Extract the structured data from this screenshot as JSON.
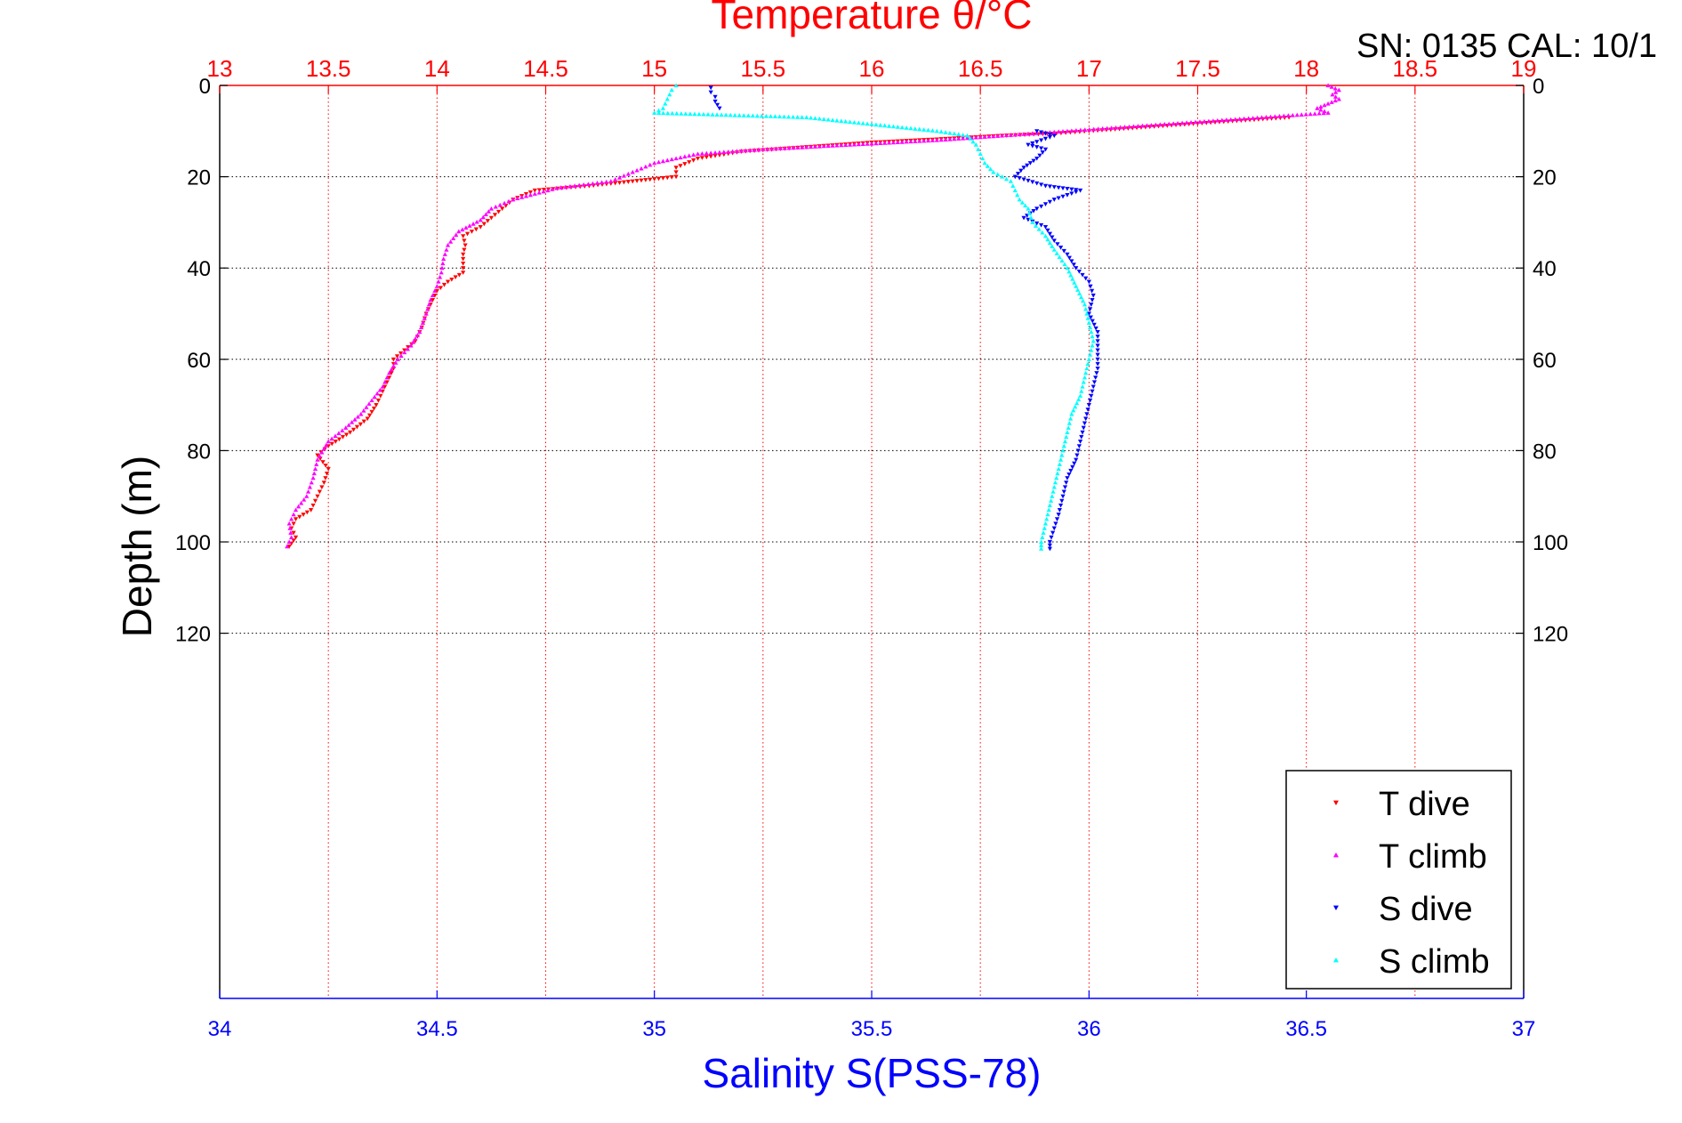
{
  "chart_data": {
    "type": "scatter",
    "top_axis": {
      "label": "Temperature θ/°C",
      "range": [
        13,
        19
      ],
      "ticks": [
        13,
        13.5,
        14,
        14.5,
        15,
        15.5,
        16,
        16.5,
        17,
        17.5,
        18,
        18.5,
        19
      ],
      "tick_labels": [
        "13",
        "13.5",
        "14",
        "14.5",
        "15",
        "15.5",
        "16",
        "16.5",
        "17",
        "17.5",
        "18",
        "18.5",
        "19"
      ],
      "color": "#ff0000"
    },
    "bottom_axis": {
      "label": "Salinity S(PSS-78)",
      "range": [
        34,
        37
      ],
      "ticks": [
        34,
        34.5,
        35,
        35.5,
        36,
        36.5,
        37
      ],
      "tick_labels": [
        "34",
        "34.5",
        "35",
        "35.5",
        "36",
        "36.5",
        "37"
      ],
      "color": "#0000ff"
    },
    "y_axis": {
      "label": "Depth (m)",
      "range": [
        0,
        200
      ],
      "reversed": true,
      "ticks": [
        0,
        20,
        40,
        60,
        80,
        100,
        120
      ],
      "tick_labels": [
        "0",
        "20",
        "40",
        "60",
        "80",
        "100",
        "120"
      ]
    },
    "annotation": "SN: 0135  CAL: 10/1",
    "grid": true,
    "legend_position": "bottom-right",
    "series": [
      {
        "name": "T dive",
        "color": "#ff0000",
        "marker": "triangle-down",
        "axis": "top",
        "points": [
          [
            17.92,
            7
          ],
          [
            17.6,
            8
          ],
          [
            17.3,
            9
          ],
          [
            17.0,
            10
          ],
          [
            16.85,
            10.5
          ],
          [
            16.6,
            11
          ],
          [
            16.3,
            11.8
          ],
          [
            16.0,
            12.5
          ],
          [
            15.7,
            13.5
          ],
          [
            15.4,
            14.5
          ],
          [
            15.2,
            16
          ],
          [
            15.1,
            18
          ],
          [
            15.1,
            20
          ],
          [
            14.9,
            21
          ],
          [
            14.7,
            22
          ],
          [
            14.45,
            23
          ],
          [
            14.35,
            25
          ],
          [
            14.3,
            27
          ],
          [
            14.25,
            29
          ],
          [
            14.2,
            31
          ],
          [
            14.12,
            33
          ],
          [
            14.13,
            35
          ],
          [
            14.12,
            37
          ],
          [
            14.12,
            39
          ],
          [
            14.12,
            41
          ],
          [
            14.05,
            43
          ],
          [
            14.0,
            45
          ],
          [
            13.98,
            47
          ],
          [
            13.95,
            50
          ],
          [
            13.93,
            53
          ],
          [
            13.9,
            56
          ],
          [
            13.85,
            58
          ],
          [
            13.8,
            60
          ],
          [
            13.8,
            62
          ],
          [
            13.78,
            64
          ],
          [
            13.75,
            67
          ],
          [
            13.72,
            70
          ],
          [
            13.68,
            73
          ],
          [
            13.6,
            76
          ],
          [
            13.5,
            79
          ],
          [
            13.45,
            81
          ],
          [
            13.5,
            84
          ],
          [
            13.48,
            87
          ],
          [
            13.45,
            90
          ],
          [
            13.42,
            93
          ],
          [
            13.35,
            95
          ],
          [
            13.33,
            97
          ],
          [
            13.35,
            99
          ],
          [
            13.32,
            101
          ]
        ]
      },
      {
        "name": "T climb",
        "color": "#ff00ff",
        "marker": "triangle-up",
        "axis": "top",
        "points": [
          [
            18.1,
            0
          ],
          [
            18.15,
            1
          ],
          [
            18.12,
            2
          ],
          [
            18.15,
            3
          ],
          [
            18.1,
            4
          ],
          [
            18.05,
            5
          ],
          [
            18.1,
            6
          ],
          [
            16.9,
            10
          ],
          [
            16.6,
            11
          ],
          [
            16.3,
            12
          ],
          [
            15.9,
            13
          ],
          [
            15.5,
            14
          ],
          [
            15.2,
            15
          ],
          [
            15.0,
            17
          ],
          [
            14.9,
            19
          ],
          [
            14.8,
            21
          ],
          [
            14.55,
            22.5
          ],
          [
            14.35,
            25
          ],
          [
            14.25,
            27
          ],
          [
            14.2,
            29.5
          ],
          [
            14.1,
            32
          ],
          [
            14.05,
            35
          ],
          [
            14.03,
            38
          ],
          [
            14.02,
            41
          ],
          [
            14.0,
            44
          ],
          [
            13.97,
            47
          ],
          [
            13.95,
            50
          ],
          [
            13.92,
            54
          ],
          [
            13.88,
            57
          ],
          [
            13.82,
            60
          ],
          [
            13.78,
            63
          ],
          [
            13.75,
            66
          ],
          [
            13.7,
            69
          ],
          [
            13.65,
            72
          ],
          [
            13.58,
            75
          ],
          [
            13.5,
            78
          ],
          [
            13.45,
            82
          ],
          [
            13.43,
            86
          ],
          [
            13.4,
            90
          ],
          [
            13.35,
            93
          ],
          [
            13.32,
            96
          ],
          [
            13.33,
            99
          ],
          [
            13.31,
            101
          ]
        ]
      },
      {
        "name": "S dive",
        "color": "#0000ff",
        "marker": "triangle-down",
        "axis": "bottom",
        "points": [
          [
            35.13,
            0.5
          ],
          [
            35.13,
            1.5
          ],
          [
            35.14,
            2.5
          ],
          [
            35.14,
            3.5
          ],
          [
            35.15,
            5
          ],
          [
            35.88,
            10
          ],
          [
            35.92,
            11
          ],
          [
            35.86,
            13
          ],
          [
            35.9,
            14
          ],
          [
            35.88,
            16
          ],
          [
            35.85,
            18
          ],
          [
            35.83,
            20
          ],
          [
            35.9,
            22
          ],
          [
            35.98,
            23
          ],
          [
            35.92,
            25
          ],
          [
            35.88,
            27
          ],
          [
            35.85,
            29
          ],
          [
            35.9,
            31
          ],
          [
            35.92,
            34
          ],
          [
            35.95,
            37
          ],
          [
            35.97,
            40
          ],
          [
            36.0,
            43
          ],
          [
            36.01,
            46
          ],
          [
            36.0,
            50
          ],
          [
            36.02,
            54
          ],
          [
            36.02,
            58
          ],
          [
            36.02,
            62
          ],
          [
            36.01,
            66
          ],
          [
            36.0,
            70
          ],
          [
            35.99,
            74
          ],
          [
            35.98,
            78
          ],
          [
            35.97,
            82
          ],
          [
            35.95,
            86
          ],
          [
            35.94,
            90
          ],
          [
            35.93,
            94
          ],
          [
            35.92,
            97
          ],
          [
            35.91,
            100
          ],
          [
            35.91,
            101.5
          ]
        ]
      },
      {
        "name": "S climb",
        "color": "#00ffff",
        "marker": "triangle-up",
        "axis": "bottom",
        "points": [
          [
            35.05,
            0
          ],
          [
            35.04,
            1
          ],
          [
            35.03,
            3
          ],
          [
            35.02,
            5
          ],
          [
            35.0,
            6
          ],
          [
            35.35,
            7
          ],
          [
            35.55,
            9
          ],
          [
            35.65,
            10
          ],
          [
            35.72,
            11
          ],
          [
            35.74,
            13
          ],
          [
            35.75,
            15
          ],
          [
            35.76,
            17
          ],
          [
            35.78,
            19
          ],
          [
            35.82,
            21
          ],
          [
            35.83,
            23
          ],
          [
            35.84,
            25
          ],
          [
            35.86,
            27
          ],
          [
            35.87,
            30
          ],
          [
            35.9,
            33
          ],
          [
            35.92,
            36
          ],
          [
            35.95,
            40
          ],
          [
            35.97,
            44
          ],
          [
            35.99,
            48
          ],
          [
            36.0,
            52
          ],
          [
            36.01,
            56
          ],
          [
            36.0,
            60
          ],
          [
            35.99,
            64
          ],
          [
            35.98,
            68
          ],
          [
            35.96,
            72
          ],
          [
            35.95,
            76
          ],
          [
            35.94,
            80
          ],
          [
            35.93,
            84
          ],
          [
            35.92,
            88
          ],
          [
            35.91,
            92
          ],
          [
            35.9,
            96
          ],
          [
            35.89,
            100
          ],
          [
            35.89,
            101.5
          ]
        ]
      }
    ]
  }
}
